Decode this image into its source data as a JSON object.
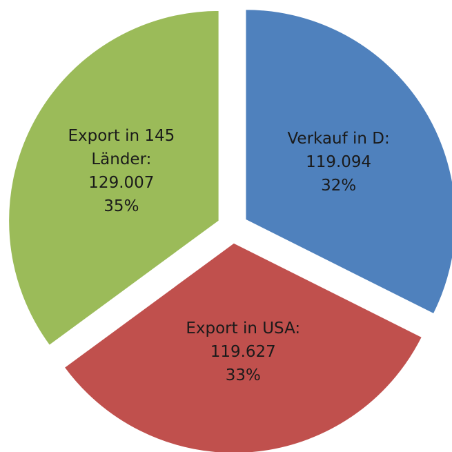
{
  "chart_data": {
    "type": "pie",
    "categories": [
      "Verkauf in D:",
      "Export in USA:",
      "Export in 145 Länder:"
    ],
    "values": [
      119094,
      119627,
      129007
    ],
    "value_labels": [
      "119.094",
      "119.627",
      "129.007"
    ],
    "percent_labels": [
      "32%",
      "33%",
      "35%"
    ],
    "colors": [
      "#4f81bd",
      "#c0504d",
      "#9bbb59"
    ]
  }
}
